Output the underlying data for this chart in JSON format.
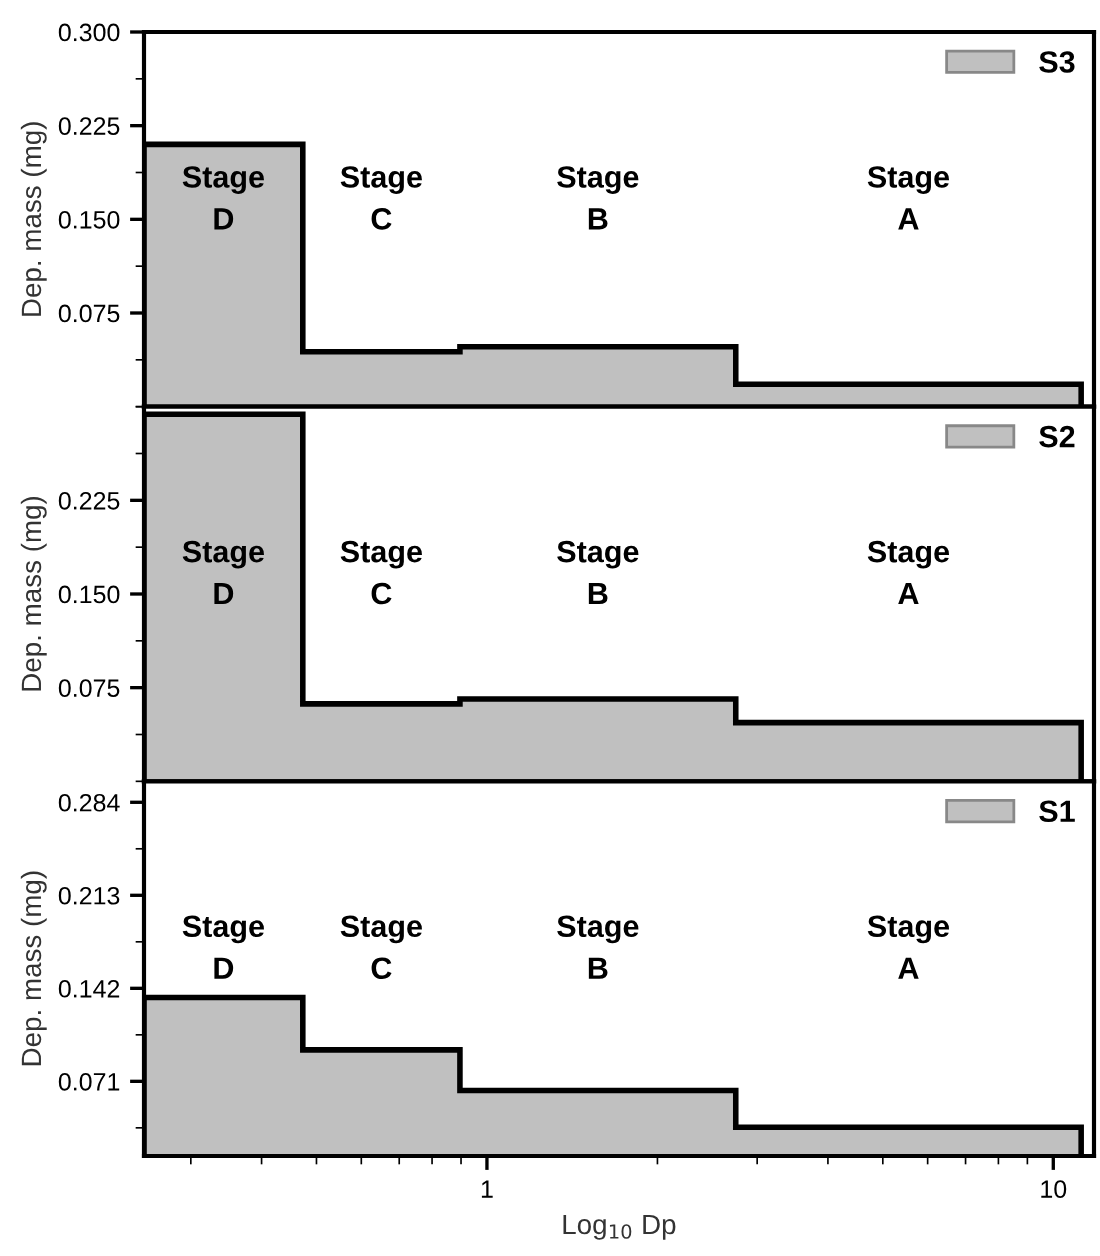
{
  "chart_data": [
    {
      "type": "histogram",
      "ylabel": "Dep. mass (mg)",
      "bins": [
        0.248,
        0.473,
        0.896,
        2.75,
        11.2
      ],
      "series": [
        {
          "name": "S3",
          "color": "#c0c0c0",
          "values": [
            0.21,
            0.044,
            0.048,
            0.018
          ]
        }
      ],
      "xlim": [
        0.248,
        11.8
      ],
      "xticks": [
        1,
        10
      ],
      "log": "x",
      "ylim": [
        0,
        0.3
      ],
      "yticks": [
        0.075,
        {
          "value": 0.15,
          "label": "0.150"
        },
        {
          "value": 0.225,
          "label": "0.225"
        },
        {
          "value": 0.3,
          "label": "0.300"
        }
      ],
      "annotations": [
        "Stage\nD",
        "Stage\nC",
        "Stage\nB",
        "Stage\nA"
      ],
      "legend": "top right",
      "tick_labels": "y"
    },
    {
      "type": "histogram",
      "ylabel": "Dep. mass (mg)",
      "bins": [
        0.248,
        0.473,
        0.896,
        2.75,
        11.2
      ],
      "series": [
        {
          "name": "S2",
          "color": "#c0c0c0",
          "values": [
            0.294,
            0.062,
            0.066,
            0.047
          ]
        }
      ],
      "xlim": [
        0.248,
        11.8
      ],
      "xticks": [
        1,
        10
      ],
      "log": "x",
      "ylim": [
        0,
        0.3
      ],
      "yticks": [
        0.075,
        {
          "value": 0.15,
          "label": "0.150"
        },
        0.225
      ],
      "annotations": [
        "Stage\nD",
        "Stage\nC",
        "Stage\nB",
        "Stage\nA"
      ],
      "legend": "top right",
      "tick_labels": "y"
    },
    {
      "type": "histogram",
      "ylabel": "Dep. mass (mg)",
      "xlabel": "Log$_{10}$ Dp",
      "bins": [
        0.248,
        0.473,
        0.896,
        2.75,
        11.2
      ],
      "series": [
        {
          "name": "S1",
          "color": "#c0c0c0",
          "values": [
            0.135,
            0.095,
            0.064,
            0.036
          ]
        }
      ],
      "xlim": [
        0.248,
        11.8
      ],
      "xticks": [
        1,
        10
      ],
      "log": "x",
      "ylim": [
        0.014,
        0.3
      ],
      "yticks": [
        0.071,
        0.142,
        0.213,
        0.284
      ],
      "annotations": [
        "Stage\nD",
        "Stage\nC",
        "Stage\nB",
        "Stage\nA"
      ],
      "legend": "top right"
    }
  ]
}
